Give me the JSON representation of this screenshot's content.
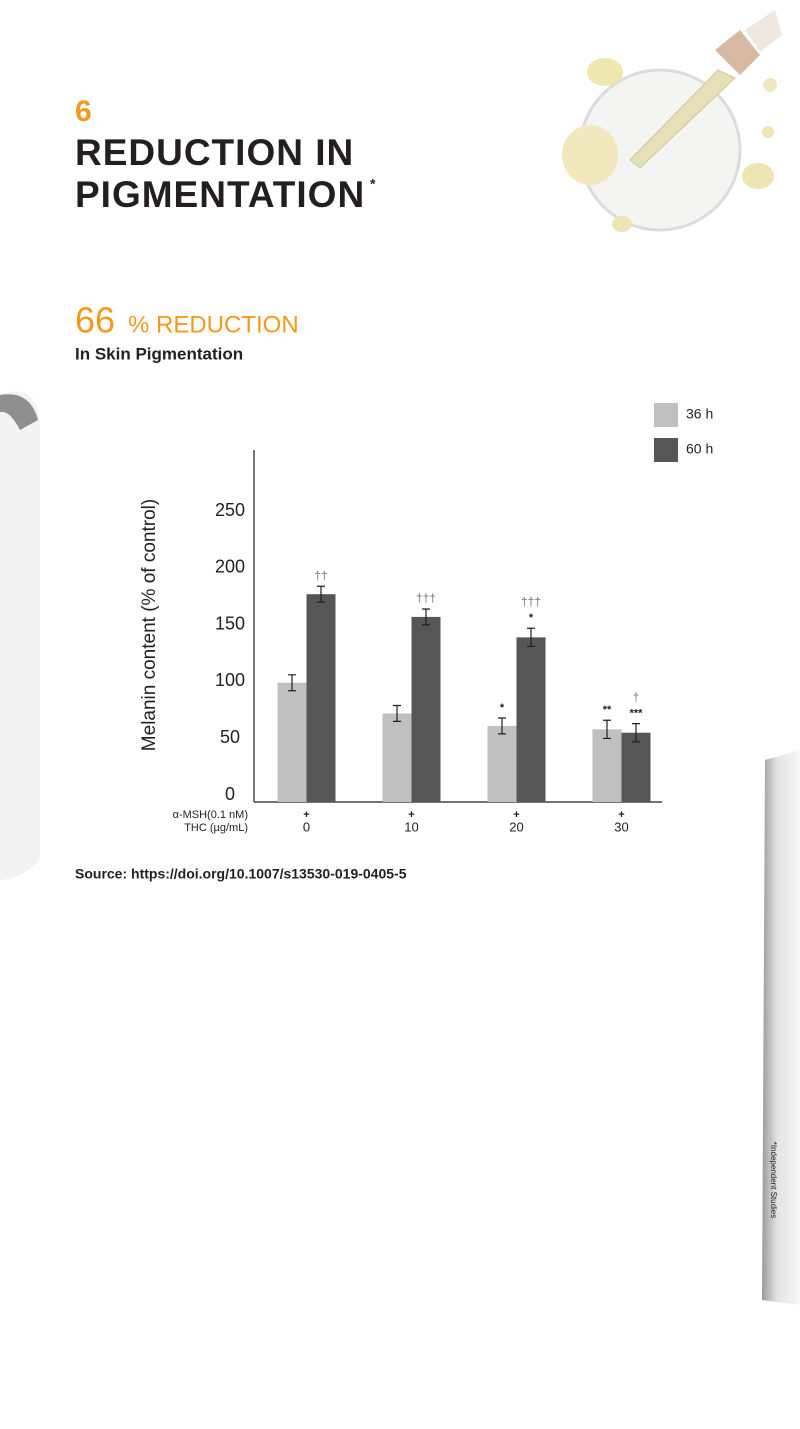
{
  "header": {
    "number": "6",
    "title_lines": [
      "REDUCTION IN",
      "PIGMENTATION"
    ],
    "title_mark": "*"
  },
  "highlight": {
    "number": "66",
    "unit": "% REDUCTION",
    "subtitle": "In Skin Pigmentation"
  },
  "source": "Source: https://doi.org/10.1007/s13530-019-0405-5",
  "footnote": "*Independent Studies",
  "chart_data": {
    "type": "bar",
    "y_label": "Melanin content (% of control)",
    "row_labels": [
      "α-MSH(0.1 nM)",
      "THC (µg/mL)"
    ],
    "msh_row": [
      "+",
      "+",
      "+",
      "+"
    ],
    "categories": [
      "0",
      "10",
      "20",
      "30"
    ],
    "series": [
      {
        "name": "36 h",
        "color": "#c1c0c0",
        "values": [
          105,
          78,
          67,
          64
        ],
        "errors": [
          7,
          7,
          7,
          8
        ],
        "star_labels": [
          null,
          null,
          "*",
          "**"
        ],
        "dagger_labels": [
          null,
          null,
          null,
          null
        ]
      },
      {
        "name": "60 h",
        "color": "#565656",
        "values": [
          183,
          163,
          145,
          61
        ],
        "errors": [
          7,
          7,
          8,
          8
        ],
        "star_labels": [
          null,
          null,
          "*",
          "***"
        ],
        "dagger_labels": [
          "††",
          "†††",
          "†††",
          "†"
        ]
      }
    ],
    "ylim": [
      0,
      310
    ],
    "yticks": [
      0,
      50,
      100,
      150,
      200,
      250
    ],
    "grid": false,
    "legend": "top-right"
  }
}
